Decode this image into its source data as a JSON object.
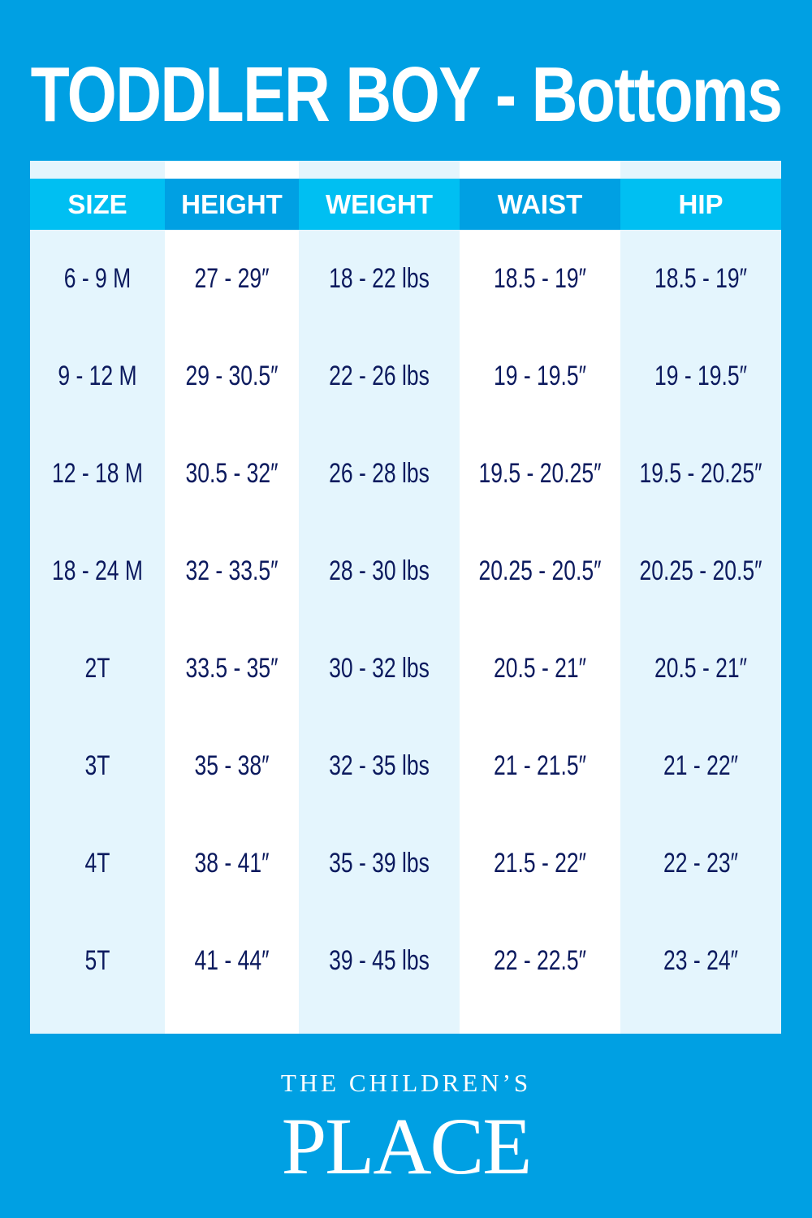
{
  "title": "TODDLER BOY - Bottoms",
  "columns": [
    "SIZE",
    "HEIGHT",
    "WEIGHT",
    "WAIST",
    "HIP"
  ],
  "rows": [
    [
      "6 - 9 M",
      "27 - 29″",
      "18 - 22 lbs",
      "18.5 - 19″",
      "18.5 - 19″"
    ],
    [
      "9 - 12 M",
      "29 - 30.5″",
      "22 - 26 lbs",
      "19 - 19.5″",
      "19 - 19.5″"
    ],
    [
      "12  - 18 M",
      "30.5 - 32″",
      "26 - 28 lbs",
      "19.5 - 20.25″",
      "19.5 - 20.25″"
    ],
    [
      "18 - 24 M",
      "32 - 33.5″",
      "28 - 30 lbs",
      "20.25 - 20.5″",
      "20.25 - 20.5″"
    ],
    [
      "2T",
      "33.5 - 35″",
      "30 - 32 lbs",
      "20.5 - 21″",
      "20.5 - 21″"
    ],
    [
      "3T",
      "35 - 38″",
      "32 - 35 lbs",
      "21 - 21.5″",
      "21 - 22″"
    ],
    [
      "4T",
      "38 - 41″",
      "35 - 39 lbs",
      "21.5 - 22″",
      "22 - 23″"
    ],
    [
      "5T",
      "41 - 44″",
      "39 - 45 lbs",
      "22 - 22.5″",
      "23 - 24″"
    ]
  ],
  "logo": {
    "line1": "THE CHILDREN’S",
    "line2": "PLACE"
  },
  "colors": {
    "background": "#00a0e3",
    "header_light": "#00bff2",
    "header_dark": "#00a0e3",
    "text": "#0c1a5e"
  }
}
